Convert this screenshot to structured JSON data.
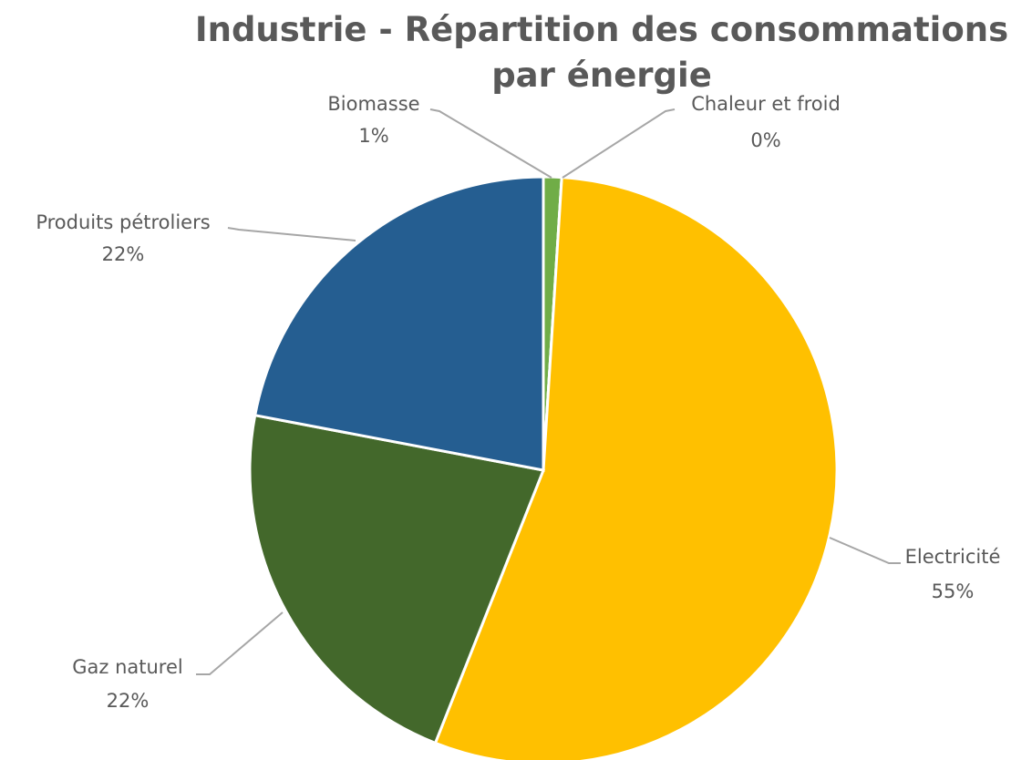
{
  "chart_data": {
    "type": "pie",
    "title": "Industrie - Répartition des consommations par énergie",
    "categories": [
      "Biomasse",
      "Chaleur et froid",
      "Electricité",
      "Gaz naturel",
      "Produits pétroliers"
    ],
    "values": [
      1,
      0,
      55,
      22,
      22
    ],
    "value_labels": [
      "1%",
      "0%",
      "55%",
      "22%",
      "22%"
    ],
    "colors": [
      "#70ad47",
      "#a5a5a5",
      "#ffc000",
      "#43682b",
      "#255e91"
    ]
  }
}
